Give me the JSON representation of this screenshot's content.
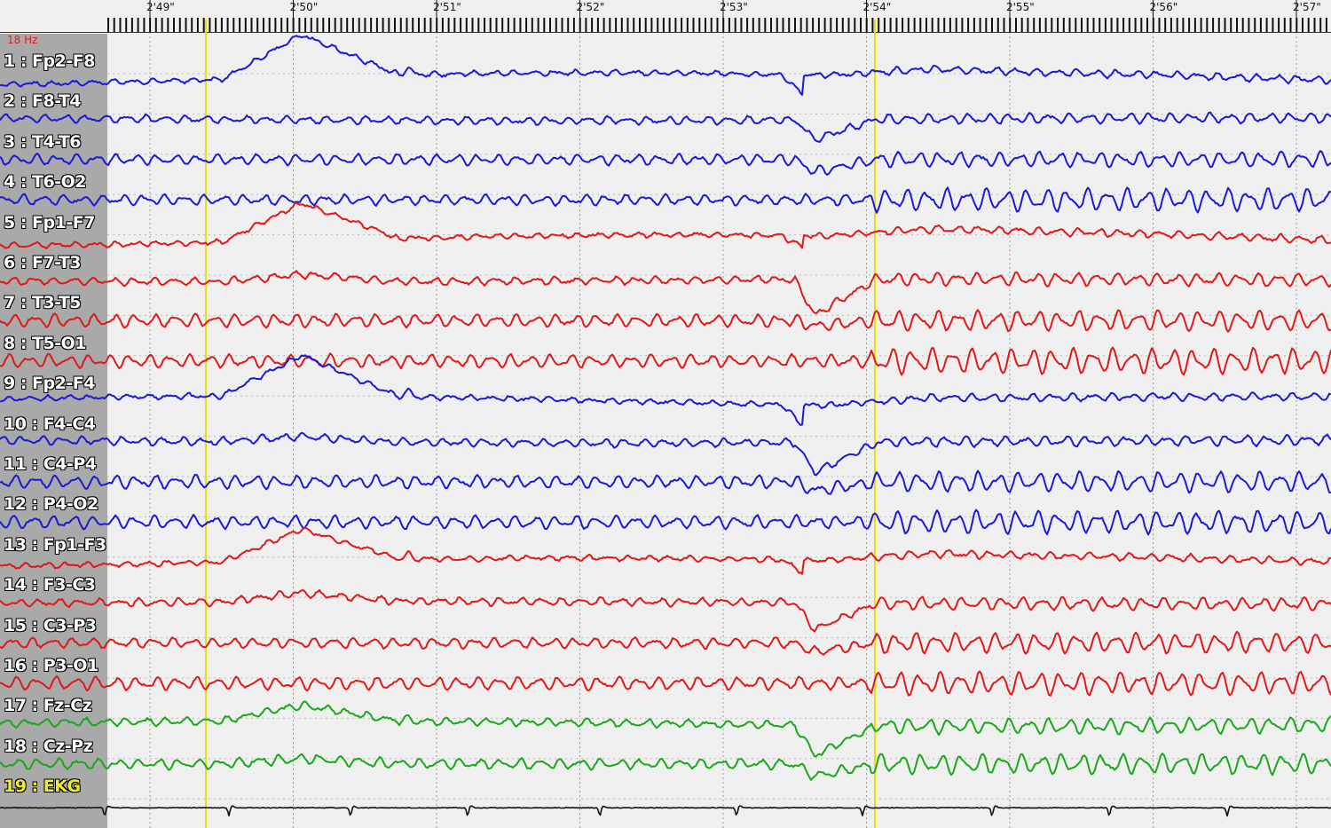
{
  "viewer": {
    "filter_label": "18 Hz"
  },
  "time_axis": {
    "labels": [
      "2'49\"",
      "2'50\"",
      "2'51\"",
      "2'52\"",
      "2'53\"",
      "2'54\"",
      "2'55\"",
      "2'56\"",
      "2'57\""
    ]
  },
  "colors": {
    "right_chain": "#1a1ad6",
    "left_chain": "#e01818",
    "midline": "#18a818",
    "ekg": "#111111",
    "marker": "#e8e000",
    "grid": "#9a9a9a"
  },
  "chart_data": {
    "type": "line",
    "x_unit": "seconds",
    "x_range": [
      "2'49\"",
      "2'57\""
    ],
    "markers": [
      "2'49.4\"",
      "2'54.1\""
    ],
    "series": [
      {
        "name": "1 : Fp2-F8",
        "group": "right_chain"
      },
      {
        "name": "2 : F8-T4",
        "group": "right_chain"
      },
      {
        "name": "3 : T4-T6",
        "group": "right_chain"
      },
      {
        "name": "4 : T6-O2",
        "group": "right_chain"
      },
      {
        "name": "5 : Fp1-F7",
        "group": "left_chain"
      },
      {
        "name": "6 : F7-T3",
        "group": "left_chain"
      },
      {
        "name": "7 : T3-T5",
        "group": "left_chain"
      },
      {
        "name": "8 : T5-O1",
        "group": "left_chain"
      },
      {
        "name": "9 : Fp2-F4",
        "group": "right_chain"
      },
      {
        "name": "10 : F4-C4",
        "group": "right_chain"
      },
      {
        "name": "11 : C4-P4",
        "group": "right_chain"
      },
      {
        "name": "12 : P4-O2",
        "group": "right_chain"
      },
      {
        "name": "13 : Fp1-F3",
        "group": "left_chain"
      },
      {
        "name": "14 : F3-C3",
        "group": "left_chain"
      },
      {
        "name": "15 : C3-P3",
        "group": "left_chain"
      },
      {
        "name": "16 : P3-O1",
        "group": "left_chain"
      },
      {
        "name": "17 : Fz-Cz",
        "group": "midline"
      },
      {
        "name": "18 : Cz-Pz",
        "group": "midline"
      },
      {
        "name": "19 : EKG",
        "group": "ekg"
      }
    ]
  }
}
